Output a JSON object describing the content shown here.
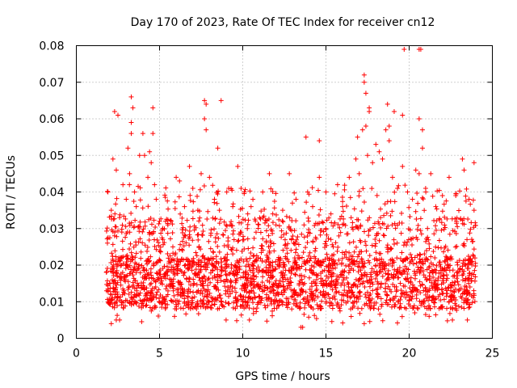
{
  "chart_data": {
    "type": "scatter",
    "title": "Day 170 of 2023, Rate Of TEC Index for receiver cn12",
    "xlabel": "GPS time / hours",
    "ylabel": "ROTI / TECUs",
    "xlim": [
      0,
      25
    ],
    "ylim": [
      0,
      0.08
    ],
    "x_ticks": [
      0,
      5,
      10,
      15,
      20,
      25
    ],
    "x_tick_labels": [
      "0",
      "5",
      "10",
      "15",
      "20",
      "25"
    ],
    "y_ticks": [
      0,
      0.01,
      0.02,
      0.03,
      0.04,
      0.05,
      0.06,
      0.07,
      0.08
    ],
    "y_tick_labels": [
      "0",
      "0.01",
      "0.02",
      "0.03",
      "0.04",
      "0.05",
      "0.06",
      "0.07",
      "0.08"
    ],
    "grid": true,
    "marker": "plus",
    "color": "#ff0000",
    "series": [
      {
        "name": "ROTI",
        "x_range": [
          1.8,
          24.0
        ],
        "typical_range": [
          0.008,
          0.022
        ],
        "min_value": 0.003,
        "notable_points": [
          {
            "x": 2.3,
            "y": 0.062
          },
          {
            "x": 2.5,
            "y": 0.061
          },
          {
            "x": 3.3,
            "y": 0.066
          },
          {
            "x": 3.4,
            "y": 0.063
          },
          {
            "x": 3.3,
            "y": 0.059
          },
          {
            "x": 4.6,
            "y": 0.063
          },
          {
            "x": 7.7,
            "y": 0.065
          },
          {
            "x": 7.8,
            "y": 0.064
          },
          {
            "x": 7.7,
            "y": 0.06
          },
          {
            "x": 8.7,
            "y": 0.065
          },
          {
            "x": 8.5,
            "y": 0.052
          },
          {
            "x": 13.8,
            "y": 0.055
          },
          {
            "x": 14.6,
            "y": 0.054
          },
          {
            "x": 16.9,
            "y": 0.055
          },
          {
            "x": 17.3,
            "y": 0.072
          },
          {
            "x": 17.3,
            "y": 0.07
          },
          {
            "x": 17.4,
            "y": 0.067
          },
          {
            "x": 17.6,
            "y": 0.063
          },
          {
            "x": 18.7,
            "y": 0.064
          },
          {
            "x": 18.8,
            "y": 0.058
          },
          {
            "x": 19.1,
            "y": 0.062
          },
          {
            "x": 19.6,
            "y": 0.061
          },
          {
            "x": 19.7,
            "y": 0.079
          },
          {
            "x": 20.6,
            "y": 0.079
          },
          {
            "x": 20.7,
            "y": 0.079
          },
          {
            "x": 20.6,
            "y": 0.06
          },
          {
            "x": 20.8,
            "y": 0.057
          },
          {
            "x": 23.9,
            "y": 0.048
          }
        ],
        "points": [
          {
            "x": 1.9,
            "y": 0.013
          },
          {
            "x": 1.9,
            "y": 0.04
          },
          {
            "x": 2.0,
            "y": 0.015
          },
          {
            "x": 2.1,
            "y": 0.035
          },
          {
            "x": 2.1,
            "y": 0.004
          },
          {
            "x": 2.2,
            "y": 0.049
          },
          {
            "x": 2.3,
            "y": 0.028
          },
          {
            "x": 2.3,
            "y": 0.011
          },
          {
            "x": 2.4,
            "y": 0.046
          },
          {
            "x": 2.4,
            "y": 0.005
          },
          {
            "x": 2.6,
            "y": 0.033
          },
          {
            "x": 2.7,
            "y": 0.02
          },
          {
            "x": 2.8,
            "y": 0.042
          },
          {
            "x": 3.0,
            "y": 0.038
          },
          {
            "x": 3.1,
            "y": 0.052
          },
          {
            "x": 3.2,
            "y": 0.045
          },
          {
            "x": 3.3,
            "y": 0.056
          },
          {
            "x": 3.5,
            "y": 0.04
          },
          {
            "x": 3.6,
            "y": 0.036
          },
          {
            "x": 3.8,
            "y": 0.05
          },
          {
            "x": 4.0,
            "y": 0.056
          },
          {
            "x": 4.1,
            "y": 0.05
          },
          {
            "x": 4.3,
            "y": 0.044
          },
          {
            "x": 4.4,
            "y": 0.051
          },
          {
            "x": 4.5,
            "y": 0.048
          },
          {
            "x": 4.6,
            "y": 0.056
          },
          {
            "x": 4.7,
            "y": 0.042
          },
          {
            "x": 4.8,
            "y": 0.038
          },
          {
            "x": 5.0,
            "y": 0.032
          },
          {
            "x": 5.2,
            "y": 0.027
          },
          {
            "x": 5.5,
            "y": 0.031
          },
          {
            "x": 5.8,
            "y": 0.025
          },
          {
            "x": 6.0,
            "y": 0.044
          },
          {
            "x": 6.2,
            "y": 0.043
          },
          {
            "x": 6.5,
            "y": 0.036
          },
          {
            "x": 6.8,
            "y": 0.047
          },
          {
            "x": 7.0,
            "y": 0.041
          },
          {
            "x": 7.3,
            "y": 0.035
          },
          {
            "x": 7.5,
            "y": 0.045
          },
          {
            "x": 7.8,
            "y": 0.057
          },
          {
            "x": 8.0,
            "y": 0.044
          },
          {
            "x": 8.3,
            "y": 0.038
          },
          {
            "x": 8.6,
            "y": 0.035
          },
          {
            "x": 9.0,
            "y": 0.031
          },
          {
            "x": 9.4,
            "y": 0.036
          },
          {
            "x": 9.7,
            "y": 0.047
          },
          {
            "x": 9.9,
            "y": 0.041
          },
          {
            "x": 10.1,
            "y": 0.04
          },
          {
            "x": 10.3,
            "y": 0.034
          },
          {
            "x": 10.5,
            "y": 0.036
          },
          {
            "x": 10.8,
            "y": 0.029
          },
          {
            "x": 11.2,
            "y": 0.04
          },
          {
            "x": 11.6,
            "y": 0.045
          },
          {
            "x": 12.0,
            "y": 0.031
          },
          {
            "x": 12.4,
            "y": 0.035
          },
          {
            "x": 12.8,
            "y": 0.045
          },
          {
            "x": 13.2,
            "y": 0.038
          },
          {
            "x": 13.5,
            "y": 0.003
          },
          {
            "x": 13.6,
            "y": 0.003
          },
          {
            "x": 13.9,
            "y": 0.04
          },
          {
            "x": 14.2,
            "y": 0.036
          },
          {
            "x": 14.6,
            "y": 0.044
          },
          {
            "x": 15.0,
            "y": 0.04
          },
          {
            "x": 15.3,
            "y": 0.034
          },
          {
            "x": 15.7,
            "y": 0.042
          },
          {
            "x": 16.0,
            "y": 0.036
          },
          {
            "x": 16.4,
            "y": 0.044
          },
          {
            "x": 16.8,
            "y": 0.049
          },
          {
            "x": 17.0,
            "y": 0.045
          },
          {
            "x": 17.2,
            "y": 0.057
          },
          {
            "x": 17.4,
            "y": 0.058
          },
          {
            "x": 17.5,
            "y": 0.05
          },
          {
            "x": 17.6,
            "y": 0.062
          },
          {
            "x": 17.8,
            "y": 0.048
          },
          {
            "x": 18.0,
            "y": 0.053
          },
          {
            "x": 18.2,
            "y": 0.051
          },
          {
            "x": 18.4,
            "y": 0.049
          },
          {
            "x": 18.6,
            "y": 0.057
          },
          {
            "x": 18.8,
            "y": 0.054
          },
          {
            "x": 19.0,
            "y": 0.044
          },
          {
            "x": 19.3,
            "y": 0.041
          },
          {
            "x": 19.6,
            "y": 0.047
          },
          {
            "x": 19.9,
            "y": 0.04
          },
          {
            "x": 20.2,
            "y": 0.038
          },
          {
            "x": 20.4,
            "y": 0.046
          },
          {
            "x": 20.6,
            "y": 0.045
          },
          {
            "x": 20.8,
            "y": 0.052
          },
          {
            "x": 21.0,
            "y": 0.04
          },
          {
            "x": 21.3,
            "y": 0.045
          },
          {
            "x": 21.6,
            "y": 0.036
          },
          {
            "x": 22.0,
            "y": 0.039
          },
          {
            "x": 22.4,
            "y": 0.044
          },
          {
            "x": 22.8,
            "y": 0.039
          },
          {
            "x": 23.2,
            "y": 0.049
          },
          {
            "x": 23.3,
            "y": 0.046
          },
          {
            "x": 23.6,
            "y": 0.038
          },
          {
            "x": 23.9,
            "y": 0.035
          },
          {
            "x": 21.2,
            "y": 0.006
          },
          {
            "x": 22.6,
            "y": 0.005
          },
          {
            "x": 23.5,
            "y": 0.005
          },
          {
            "x": 17.3,
            "y": 0.004
          },
          {
            "x": 9.0,
            "y": 0.005
          },
          {
            "x": 10.4,
            "y": 0.005
          },
          {
            "x": 2.6,
            "y": 0.005
          },
          {
            "x": 5.9,
            "y": 0.006
          }
        ]
      }
    ]
  }
}
